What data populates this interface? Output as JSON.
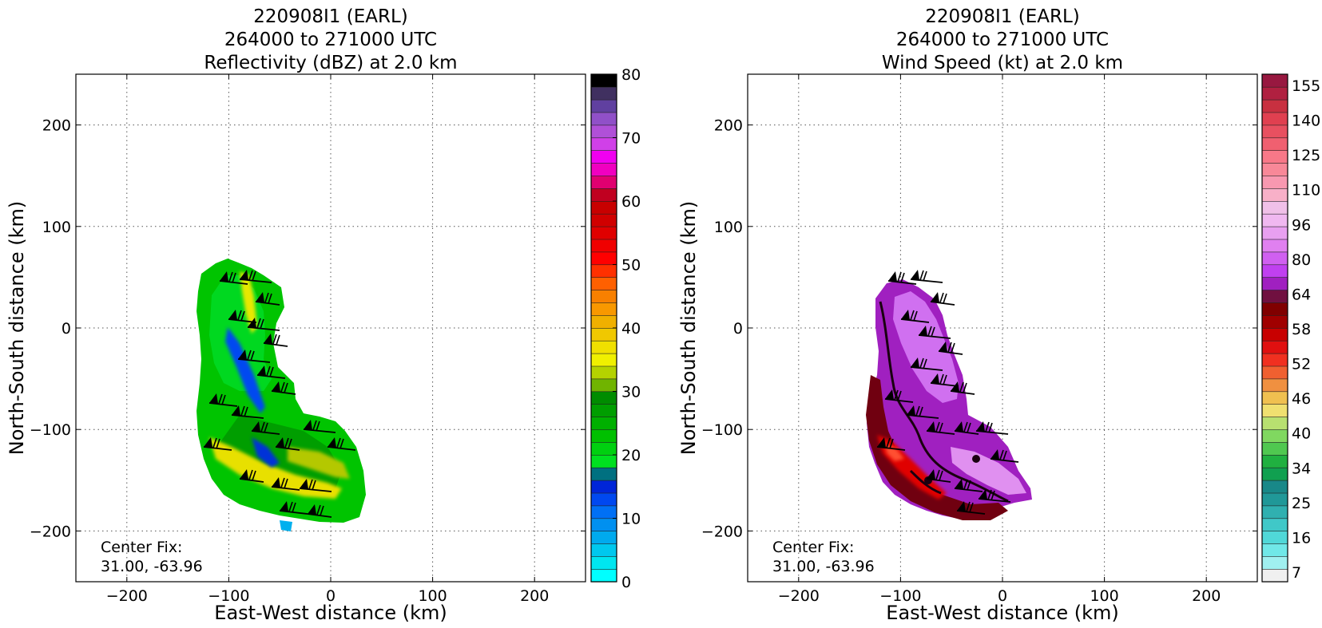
{
  "chart_data": [
    {
      "type": "heatmap",
      "title": [
        "220908I1 (EARL)",
        "264000 to 271000 UTC",
        "Reflectivity (dBZ) at 2.0 km"
      ],
      "xlabel": "East-West distance (km)",
      "ylabel": "North-South distance (km)",
      "xlim": [
        -250,
        250
      ],
      "ylim": [
        -250,
        250
      ],
      "xticks": [
        -200,
        -100,
        0,
        100,
        200
      ],
      "yticks": [
        -200,
        -100,
        0,
        100,
        200
      ],
      "grid": true,
      "annotation": [
        "Center Fix:",
        "31.00, -63.96"
      ],
      "colorbar": {
        "range": [
          0,
          80
        ],
        "tick_labels": [
          "0",
          "10",
          "20",
          "30",
          "40",
          "50",
          "60",
          "70",
          "80"
        ],
        "colors": [
          "#00ffff",
          "#00e6f0",
          "#00c8ee",
          "#00aaee",
          "#0090f0",
          "#0070f5",
          "#0048f0",
          "#0025d8",
          "#007080",
          "#00e020",
          "#00d010",
          "#00c000",
          "#00b000",
          "#009e00",
          "#008c00",
          "#70b400",
          "#b4d200",
          "#f0f000",
          "#f0e000",
          "#f0c800",
          "#f0b000",
          "#f89800",
          "#f88000",
          "#ff6000",
          "#ff3000",
          "#ff0000",
          "#f00000",
          "#e00000",
          "#d00000",
          "#c80000",
          "#c00020",
          "#e00070",
          "#f000c0",
          "#f000f0",
          "#d040e8",
          "#b050d8",
          "#9050c8",
          "#6040a0",
          "#403060",
          "#000000"
        ]
      },
      "center_fix": [
        31.0,
        -63.96
      ]
    },
    {
      "type": "heatmap",
      "title": [
        "220908I1 (EARL)",
        "264000 to 271000 UTC",
        "Wind Speed (kt) at 2.0 km"
      ],
      "xlabel": "East-West distance (km)",
      "ylabel": "North-South distance (km)",
      "xlim": [
        -250,
        250
      ],
      "ylim": [
        -250,
        250
      ],
      "xticks": [
        -200,
        -100,
        0,
        100,
        200
      ],
      "yticks": [
        -200,
        -100,
        0,
        100,
        200
      ],
      "grid": true,
      "annotation": [
        "Center Fix:",
        "31.00, -63.96"
      ],
      "colorbar": {
        "tick_labels": [
          "7",
          "16",
          "25",
          "34",
          "40",
          "46",
          "52",
          "58",
          "64",
          "80",
          "96",
          "110",
          "125",
          "140",
          "155"
        ],
        "colors": [
          "#f0f0f0",
          "#a0f0f0",
          "#70e8e8",
          "#50d8d8",
          "#40c8c8",
          "#30b0b0",
          "#209898",
          "#188888",
          "#10a050",
          "#20b040",
          "#50c850",
          "#80d860",
          "#b8e070",
          "#f0e070",
          "#f0c050",
          "#f09040",
          "#f06030",
          "#f03020",
          "#e01010",
          "#c80000",
          "#a00000",
          "#800000",
          "#701040",
          "#a020c0",
          "#c040f0",
          "#d060f0",
          "#e080f0",
          "#e8a0f0",
          "#f0b8f0",
          "#f0c0e8",
          "#f8b0c8",
          "#f898b0",
          "#f88898",
          "#f87888",
          "#f06070",
          "#e85060",
          "#e04050",
          "#c83040",
          "#b02040",
          "#981840"
        ]
      },
      "center_fix": [
        31.0,
        -63.96
      ]
    }
  ]
}
